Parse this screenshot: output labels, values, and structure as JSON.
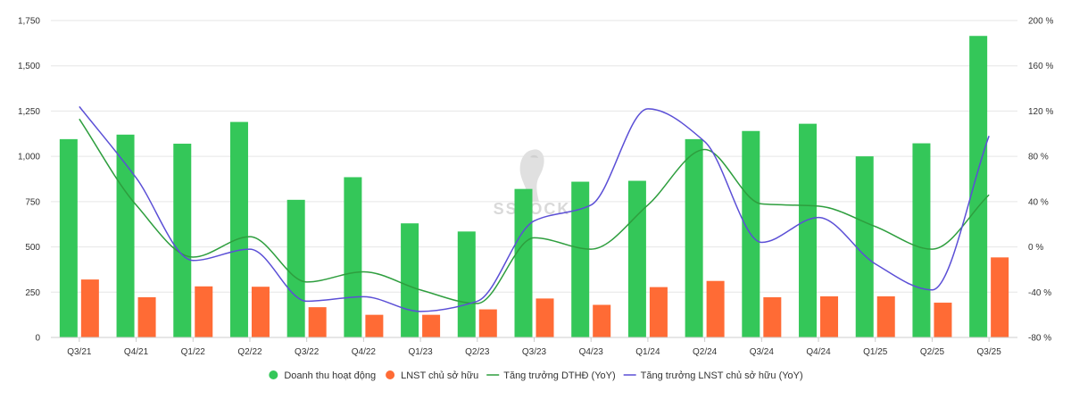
{
  "chart_data": {
    "type": "bar",
    "categories": [
      "Q3/21",
      "Q4/21",
      "Q1/22",
      "Q2/22",
      "Q3/22",
      "Q4/22",
      "Q1/23",
      "Q2/23",
      "Q3/23",
      "Q4/23",
      "Q1/24",
      "Q2/24",
      "Q3/24",
      "Q4/24",
      "Q1/25",
      "Q2/25",
      "Q3/25"
    ],
    "series": [
      {
        "name": "Doanh thu hoạt động",
        "kind": "bar",
        "axis": "left",
        "color": "#34c759",
        "values": [
          1095,
          1120,
          1070,
          1190,
          760,
          885,
          630,
          585,
          820,
          860,
          865,
          1095,
          1140,
          1180,
          1000,
          1072,
          1665
        ]
      },
      {
        "name": "LNST chủ sở hữu",
        "kind": "bar",
        "axis": "left",
        "color": "#ff6b35",
        "values": [
          320,
          222,
          282,
          280,
          167,
          125,
          125,
          155,
          215,
          180,
          278,
          312,
          222,
          227,
          227,
          192,
          442
        ]
      },
      {
        "name": "Tăng trưởng DTHĐ (YoY)",
        "kind": "line",
        "axis": "right",
        "color": "#2e9e3e",
        "values": [
          113,
          37,
          -9,
          9,
          -31,
          -22,
          -38,
          -50,
          8,
          -2,
          37,
          86,
          38,
          36,
          18,
          -2,
          46
        ]
      },
      {
        "name": "Tăng trưởng LNST chủ sở hữu (YoY)",
        "kind": "line",
        "axis": "right",
        "color": "#5b4fd6",
        "values": [
          124,
          61,
          -12,
          -2,
          -48,
          -44,
          -57,
          -48,
          23,
          37,
          122,
          93,
          4,
          26,
          -15,
          -38,
          98
        ]
      }
    ],
    "left_axis": {
      "min": 0,
      "max": 1750,
      "ticks": [
        "0",
        "250",
        "500",
        "750",
        "1,000",
        "1,250",
        "1,500",
        "1,750"
      ]
    },
    "right_axis": {
      "min": -80,
      "max": 200,
      "ticks": [
        "-80 %",
        "-40 %",
        "0 %",
        "40 %",
        "80 %",
        "120 %",
        "160 %",
        "200 %"
      ]
    },
    "grid": true,
    "legend_position": "bottom-center",
    "title": "",
    "xlabel": "",
    "ylabel": "",
    "watermark": "SSTOCK"
  }
}
